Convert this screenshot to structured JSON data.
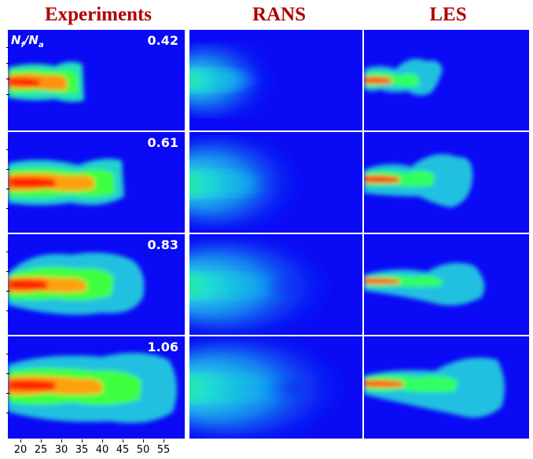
{
  "column_titles": [
    "Experiments",
    "RANS",
    "LES"
  ],
  "row_values": [
    "0.42",
    "0.61",
    "0.83",
    "1.06"
  ],
  "parameter_label": {
    "main_n": "N",
    "sub_f": "f",
    "slash": "/",
    "main_n2": "N",
    "sub_a": "a"
  },
  "x_axis_ticks": [
    "20",
    "25",
    "30",
    "35",
    "40",
    "45",
    "50",
    "55"
  ],
  "colors": {
    "background": "#0a0af5",
    "title": "#b00000"
  }
}
